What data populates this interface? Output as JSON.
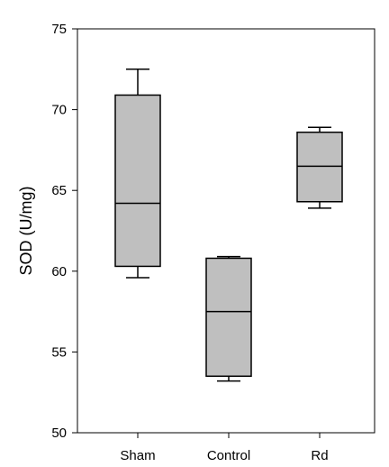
{
  "chart_data": {
    "type": "boxplot",
    "title": "",
    "xlabel": "",
    "ylabel": "SOD (U/mg)",
    "ylim": [
      50,
      75
    ],
    "yticks": [
      50,
      55,
      60,
      65,
      70,
      75
    ],
    "grid": false,
    "legend": "none",
    "categories": [
      "Sham",
      "Control",
      "Rd"
    ],
    "boxes": [
      {
        "category": "Sham",
        "whisker_low": 59.6,
        "q1": 60.3,
        "median": 64.2,
        "q3": 70.9,
        "whisker_high": 72.5
      },
      {
        "category": "Control",
        "whisker_low": 53.2,
        "q1": 53.5,
        "median": 57.5,
        "q3": 60.8,
        "whisker_high": 60.9
      },
      {
        "category": "Rd",
        "whisker_low": 63.9,
        "q1": 64.3,
        "median": 66.5,
        "q3": 68.6,
        "whisker_high": 68.9
      }
    ],
    "colors": {
      "box_fill": "#bfbfbf",
      "line": "#000000"
    }
  }
}
